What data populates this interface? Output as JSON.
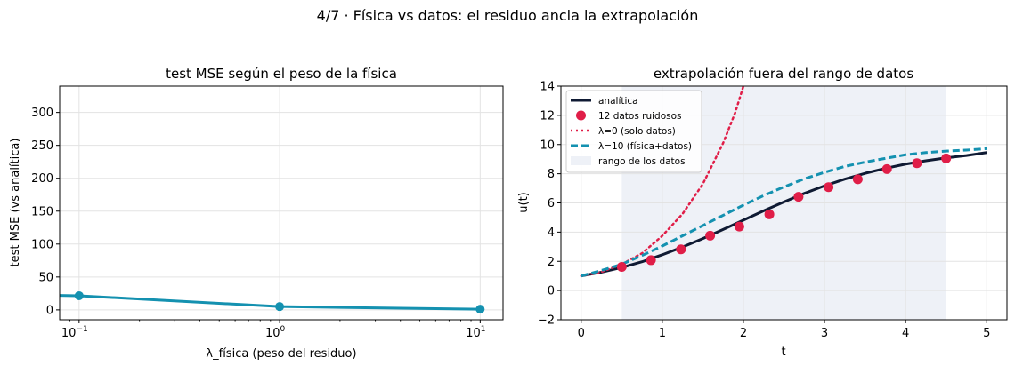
{
  "suptitle": "4/7 · Física vs datos: el residuo ancla la extrapolación",
  "colors": {
    "teal": "#1491b0",
    "navy": "#0f1a33",
    "crimson": "#e01e48",
    "band": "#eef1f7",
    "grid": "#e3e3e3"
  },
  "chart_data": [
    {
      "type": "line",
      "title": "test MSE según el peso de la física",
      "xlabel": "λ_física (peso del residuo)",
      "ylabel": "test MSE (vs analítica)",
      "xscale": "log",
      "xlim": [
        0.08,
        13
      ],
      "ylim": [
        -15,
        340
      ],
      "xticks": [
        0.1,
        1,
        10
      ],
      "xticklabels": [
        {
          "base": "10",
          "exp": "−1"
        },
        {
          "base": "10",
          "exp": "0"
        },
        {
          "base": "10",
          "exp": "1"
        }
      ],
      "yticks": [
        0,
        50,
        100,
        150,
        200,
        250,
        300
      ],
      "grid": true,
      "series": [
        {
          "x": [
            0,
            0.1,
            1,
            10
          ],
          "y": [
            22,
            21.5,
            5,
            1
          ],
          "markers_at": [
            0.1,
            1,
            10
          ],
          "color": "#1491b0"
        }
      ]
    },
    {
      "type": "line",
      "title": "extrapolación fuera del rango de datos",
      "xlabel": "t",
      "ylabel": "u(t)",
      "xlim": [
        -0.25,
        5.25
      ],
      "ylim": [
        -2,
        14
      ],
      "xticks": [
        0,
        1,
        2,
        3,
        4,
        5
      ],
      "yticks": [
        -2,
        0,
        2,
        4,
        6,
        8,
        10,
        12,
        14
      ],
      "grid": true,
      "data_range": [
        0.5,
        4.5
      ],
      "legend_position": "top-left",
      "series": [
        {
          "name": "analítica",
          "style": "solid",
          "color": "#0f1a33",
          "x": [
            0,
            0.25,
            0.5,
            0.75,
            1,
            1.25,
            1.5,
            1.75,
            2,
            2.25,
            2.5,
            2.75,
            3,
            3.25,
            3.5,
            3.75,
            4,
            4.25,
            4.5,
            4.75,
            5
          ],
          "y": [
            1.0,
            1.26,
            1.58,
            1.97,
            2.45,
            2.98,
            3.56,
            4.18,
            4.82,
            5.46,
            6.07,
            6.65,
            7.17,
            7.63,
            8.03,
            8.37,
            8.66,
            8.89,
            9.09,
            9.25,
            9.45
          ]
        },
        {
          "name": "12 datos ruidosos",
          "style": "scatter",
          "color": "#e01e48",
          "x": [
            0.5,
            0.86,
            1.23,
            1.59,
            1.95,
            2.32,
            2.68,
            3.05,
            3.41,
            3.77,
            4.14,
            4.5
          ],
          "y": [
            1.62,
            2.08,
            2.82,
            3.76,
            4.38,
            5.22,
            6.42,
            7.08,
            7.62,
            8.32,
            8.72,
            9.05
          ]
        },
        {
          "name": "λ=0 (solo datos)",
          "style": "dotted",
          "color": "#e01e48",
          "x": [
            0,
            0.25,
            0.5,
            0.75,
            1,
            1.25,
            1.5,
            1.75,
            1.9,
            2.0
          ],
          "y": [
            1.0,
            1.28,
            1.8,
            2.55,
            3.75,
            5.25,
            7.3,
            10.1,
            12.2,
            14.0
          ]
        },
        {
          "name": "λ=10 (física+datos)",
          "style": "dashed",
          "color": "#1491b0",
          "x": [
            0,
            0.25,
            0.5,
            0.75,
            1,
            1.25,
            1.5,
            1.75,
            2,
            2.25,
            2.5,
            2.75,
            3,
            3.25,
            3.5,
            3.75,
            4,
            4.25,
            4.5,
            4.75,
            5
          ],
          "y": [
            1.0,
            1.38,
            1.8,
            2.4,
            3.05,
            3.75,
            4.45,
            5.15,
            5.85,
            6.5,
            7.1,
            7.65,
            8.1,
            8.5,
            8.8,
            9.05,
            9.3,
            9.45,
            9.55,
            9.62,
            9.72
          ]
        },
        {
          "name": "rango de los datos",
          "style": "band",
          "color": "#eef1f7"
        }
      ]
    }
  ]
}
